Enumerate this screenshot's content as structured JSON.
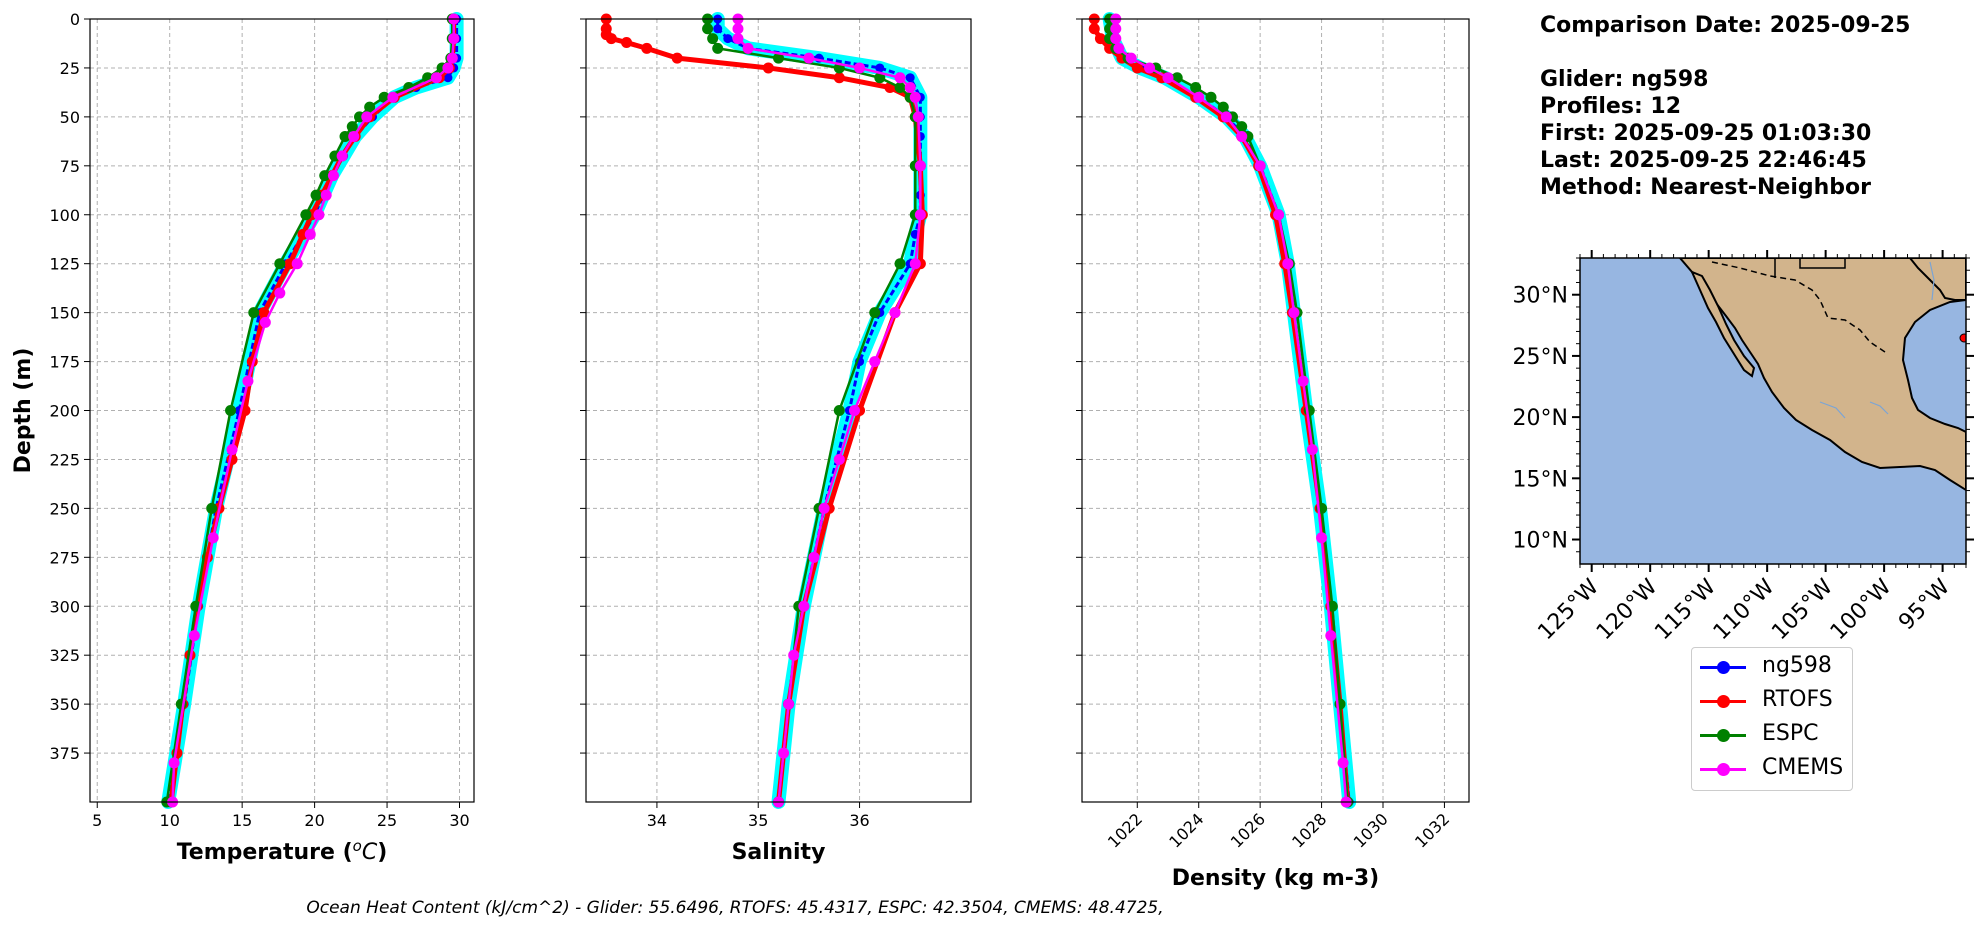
{
  "info": {
    "comparison_date": "Comparison Date: 2025-09-25",
    "glider": "Glider: ng598",
    "profiles": "Profiles: 12",
    "first": "First: 2025-09-25 01:03:30",
    "last": "Last: 2025-09-25 22:46:45",
    "method": "Method: Nearest-Neighbor"
  },
  "footer": "Ocean Heat Content (kJ/cm^2) - Glider: 55.6496,  RTOFS: 45.4317,  ESPC: 42.3504,  CMEMS: 48.4725,",
  "legend": [
    {
      "name": "ng598",
      "color": "#0000ff"
    },
    {
      "name": "RTOFS",
      "color": "#ff0000"
    },
    {
      "name": "ESPC",
      "color": "#008000"
    },
    {
      "name": "CMEMS",
      "color": "#ff00ff"
    }
  ],
  "chart_data": [
    {
      "type": "line",
      "title": "",
      "xlabel": "Temperature (",
      "xlabel_italic": "o",
      "xlabel_unit": "C",
      "xlabel_end": ")",
      "ylabel": "Depth (m)",
      "xlim": [
        4.5,
        31
      ],
      "ylim": [
        400,
        0
      ],
      "xticks": [
        5,
        10,
        15,
        20,
        25,
        30
      ],
      "yticks": [
        0,
        25,
        50,
        75,
        100,
        125,
        150,
        175,
        200,
        225,
        250,
        275,
        300,
        325,
        350,
        375
      ],
      "grid": true,
      "glider_envelope_color": "#00ffff",
      "series": [
        {
          "name": "ng598",
          "color": "#0000ff",
          "depths": [
            0,
            10,
            20,
            25,
            30,
            35,
            40,
            50,
            60,
            70,
            80,
            90,
            100,
            125,
            150,
            200,
            250,
            300,
            350,
            400
          ],
          "values": [
            29.8,
            29.8,
            29.8,
            29.6,
            29.2,
            27.0,
            25.5,
            24.0,
            22.8,
            22.0,
            21.2,
            20.6,
            20.0,
            18.0,
            16.2,
            14.8,
            13.2,
            12.0,
            11.0,
            9.9
          ]
        },
        {
          "name": "RTOFS",
          "color": "#ff0000",
          "depths": [
            0,
            10,
            20,
            25,
            30,
            40,
            50,
            60,
            70,
            80,
            90,
            100,
            110,
            125,
            150,
            175,
            200,
            225,
            250,
            275,
            300,
            325,
            350,
            375,
            400
          ],
          "values": [
            29.6,
            29.6,
            29.5,
            29.3,
            28.6,
            25.5,
            23.8,
            22.8,
            21.9,
            21.2,
            20.5,
            19.8,
            19.2,
            18.3,
            16.5,
            15.7,
            15.2,
            14.3,
            13.4,
            12.6,
            11.9,
            11.4,
            10.9,
            10.5,
            10.1
          ]
        },
        {
          "name": "ESPC",
          "color": "#008000",
          "depths": [
            0,
            10,
            20,
            25,
            30,
            35,
            40,
            45,
            50,
            55,
            60,
            70,
            80,
            90,
            100,
            125,
            150,
            200,
            250,
            300,
            350,
            400
          ],
          "values": [
            29.5,
            29.5,
            29.4,
            28.8,
            27.8,
            26.5,
            24.8,
            23.8,
            23.1,
            22.6,
            22.1,
            21.4,
            20.7,
            20.1,
            19.4,
            17.6,
            15.8,
            14.2,
            12.9,
            11.8,
            10.8,
            9.8
          ]
        },
        {
          "name": "CMEMS",
          "color": "#ff00ff",
          "depths": [
            0,
            10,
            20,
            25,
            30,
            40,
            50,
            60,
            70,
            80,
            90,
            100,
            110,
            125,
            140,
            155,
            185,
            220,
            265,
            315,
            380,
            400
          ],
          "values": [
            29.6,
            29.6,
            29.5,
            29.2,
            28.4,
            25.4,
            23.6,
            22.7,
            21.9,
            21.3,
            20.8,
            20.3,
            19.7,
            18.8,
            17.6,
            16.6,
            15.4,
            14.3,
            13.0,
            11.7,
            10.3,
            10.2
          ]
        }
      ]
    },
    {
      "type": "line",
      "title": "",
      "xlabel": "Salinity",
      "ylabel": "",
      "xlim": [
        33.3,
        37.1
      ],
      "ylim": [
        400,
        0
      ],
      "xticks": [
        34,
        35,
        36
      ],
      "yticks": [
        0,
        25,
        50,
        75,
        100,
        125,
        150,
        175,
        200,
        225,
        250,
        275,
        300,
        325,
        350,
        375
      ],
      "grid": true,
      "glider_envelope_color": "#00ffff",
      "series": [
        {
          "name": "ng598",
          "color": "#0000ff",
          "depths": [
            0,
            5,
            10,
            15,
            20,
            25,
            30,
            40,
            50,
            60,
            75,
            90,
            100,
            110,
            125,
            150,
            175,
            200,
            250,
            300,
            350,
            400
          ],
          "values": [
            34.6,
            34.6,
            34.7,
            34.9,
            35.6,
            36.2,
            36.5,
            36.6,
            36.6,
            36.6,
            36.6,
            36.6,
            36.6,
            36.55,
            36.5,
            36.2,
            36.0,
            35.9,
            35.65,
            35.45,
            35.3,
            35.2
          ]
        },
        {
          "name": "RTOFS",
          "color": "#ff0000",
          "depths": [
            0,
            5,
            8,
            10,
            12,
            15,
            20,
            25,
            30,
            35,
            40,
            50,
            75,
            100,
            125,
            150,
            200,
            250,
            300,
            350,
            400
          ],
          "values": [
            33.5,
            33.5,
            33.5,
            33.55,
            33.7,
            33.9,
            34.2,
            35.1,
            35.8,
            36.3,
            36.5,
            36.55,
            36.6,
            36.62,
            36.6,
            36.35,
            36.0,
            35.7,
            35.45,
            35.3,
            35.2
          ]
        },
        {
          "name": "ESPC",
          "color": "#008000",
          "depths": [
            0,
            5,
            10,
            15,
            20,
            25,
            30,
            35,
            40,
            50,
            75,
            100,
            125,
            150,
            200,
            250,
            300,
            350,
            400
          ],
          "values": [
            34.5,
            34.5,
            34.55,
            34.6,
            35.2,
            35.8,
            36.2,
            36.4,
            36.5,
            36.55,
            36.55,
            36.55,
            36.4,
            36.15,
            35.8,
            35.6,
            35.4,
            35.3,
            35.2
          ]
        },
        {
          "name": "CMEMS",
          "color": "#ff00ff",
          "depths": [
            0,
            5,
            10,
            15,
            20,
            25,
            30,
            35,
            40,
            50,
            75,
            100,
            125,
            150,
            175,
            200,
            225,
            250,
            275,
            300,
            325,
            350,
            375,
            400
          ],
          "values": [
            34.8,
            34.8,
            34.8,
            34.9,
            35.5,
            36.0,
            36.4,
            36.5,
            36.55,
            36.58,
            36.6,
            36.6,
            36.55,
            36.35,
            36.15,
            35.95,
            35.8,
            35.65,
            35.55,
            35.45,
            35.35,
            35.3,
            35.25,
            35.2
          ]
        }
      ]
    },
    {
      "type": "line",
      "title": "",
      "xlabel": "Density (kg m-3)",
      "ylabel": "",
      "xlim": [
        1020.2,
        1032.8
      ],
      "ylim": [
        400,
        0
      ],
      "xticks": [
        1022,
        1024,
        1026,
        1028,
        1030,
        1032
      ],
      "yticks": [
        0,
        25,
        50,
        75,
        100,
        125,
        150,
        175,
        200,
        225,
        250,
        275,
        300,
        325,
        350,
        375
      ],
      "grid": true,
      "glider_envelope_color": "#00ffff",
      "series": [
        {
          "name": "ng598",
          "color": "#0000ff",
          "depths": [
            0,
            10,
            20,
            25,
            30,
            40,
            50,
            60,
            75,
            100,
            125,
            150,
            200,
            250,
            300,
            350,
            400
          ],
          "values": [
            1021.1,
            1021.2,
            1021.5,
            1022.1,
            1022.9,
            1024.0,
            1024.9,
            1025.5,
            1026.0,
            1026.6,
            1026.9,
            1027.1,
            1027.5,
            1027.95,
            1028.3,
            1028.6,
            1028.9
          ]
        },
        {
          "name": "RTOFS",
          "color": "#ff0000",
          "depths": [
            0,
            5,
            10,
            15,
            20,
            25,
            30,
            40,
            50,
            60,
            75,
            100,
            125,
            150,
            200,
            250,
            300,
            350,
            400
          ],
          "values": [
            1020.6,
            1020.6,
            1020.8,
            1021.1,
            1021.5,
            1022.0,
            1022.8,
            1023.9,
            1024.8,
            1025.4,
            1025.95,
            1026.5,
            1026.8,
            1027.05,
            1027.5,
            1027.95,
            1028.3,
            1028.6,
            1028.85
          ]
        },
        {
          "name": "ESPC",
          "color": "#008000",
          "depths": [
            0,
            5,
            10,
            15,
            20,
            25,
            30,
            35,
            40,
            45,
            50,
            55,
            60,
            75,
            100,
            125,
            150,
            200,
            250,
            300,
            350,
            400
          ],
          "values": [
            1021.1,
            1021.1,
            1021.1,
            1021.3,
            1021.7,
            1022.6,
            1023.3,
            1023.9,
            1024.4,
            1024.8,
            1025.1,
            1025.4,
            1025.6,
            1026.0,
            1026.6,
            1026.95,
            1027.2,
            1027.6,
            1028.0,
            1028.35,
            1028.6,
            1028.85
          ]
        },
        {
          "name": "CMEMS",
          "color": "#ff00ff",
          "depths": [
            0,
            5,
            10,
            15,
            20,
            25,
            30,
            40,
            50,
            60,
            75,
            100,
            125,
            150,
            185,
            220,
            265,
            315,
            380,
            400
          ],
          "values": [
            1021.3,
            1021.3,
            1021.3,
            1021.4,
            1021.8,
            1022.4,
            1023.0,
            1024.0,
            1024.9,
            1025.4,
            1026.0,
            1026.6,
            1026.9,
            1027.1,
            1027.4,
            1027.7,
            1028.0,
            1028.3,
            1028.7,
            1028.8
          ]
        }
      ]
    },
    {
      "type": "map",
      "title": "",
      "lon_ticks": [
        "125°W",
        "120°W",
        "115°W",
        "110°W",
        "105°W",
        "100°W",
        "95°W"
      ],
      "lat_ticks": [
        "30°N",
        "25°N",
        "20°N",
        "15°N",
        "10°N"
      ],
      "lon_range": [
        -126,
        -93
      ],
      "lat_range": [
        8,
        33
      ],
      "ocean_color": "#97b6e1",
      "land_color": "#d2b48c",
      "marker": {
        "lon": -93.0,
        "lat": 27.0,
        "color": "#ff0000"
      }
    }
  ]
}
